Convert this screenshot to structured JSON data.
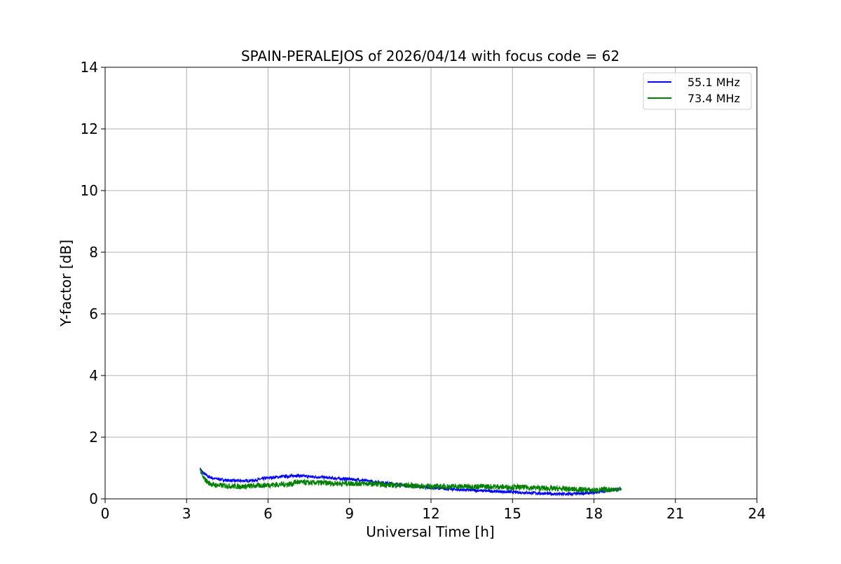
{
  "chart_data": {
    "type": "line",
    "title": "SPAIN-PERALEJOS of 2026/04/14 with focus code = 62",
    "xlabel": "Universal Time [h]",
    "ylabel": "Y-factor [dB]",
    "xlim": [
      0,
      24
    ],
    "ylim": [
      0,
      14
    ],
    "xticks": [
      0,
      3,
      6,
      9,
      12,
      15,
      18,
      21,
      24
    ],
    "yticks": [
      0,
      2,
      4,
      6,
      8,
      10,
      12,
      14
    ],
    "xtick_labels": [
      "0",
      "3",
      "6",
      "9",
      "12",
      "15",
      "18",
      "21",
      "24"
    ],
    "ytick_labels": [
      "0",
      "2",
      "4",
      "6",
      "8",
      "10",
      "12",
      "14"
    ],
    "grid": true,
    "legend_position": "top-right",
    "series": [
      {
        "name": "55.1 MHz",
        "color": "#0000ff",
        "x": [
          3.5,
          3.6,
          3.8,
          4.0,
          4.5,
          5.0,
          5.5,
          6.0,
          6.5,
          6.9,
          7.0,
          7.5,
          8.0,
          8.5,
          9.0,
          9.5,
          10.0,
          10.5,
          11.0,
          11.5,
          12.0,
          12.5,
          13.0,
          13.5,
          14.0,
          14.5,
          15.0,
          15.5,
          16.0,
          16.5,
          17.0,
          17.5,
          18.0,
          18.5,
          19.0
        ],
        "values": [
          0.98,
          0.85,
          0.72,
          0.66,
          0.6,
          0.58,
          0.6,
          0.68,
          0.72,
          0.74,
          0.76,
          0.72,
          0.7,
          0.66,
          0.64,
          0.6,
          0.55,
          0.5,
          0.44,
          0.4,
          0.36,
          0.33,
          0.3,
          0.28,
          0.26,
          0.24,
          0.22,
          0.2,
          0.18,
          0.16,
          0.15,
          0.17,
          0.2,
          0.26,
          0.32
        ],
        "noise": 0.05
      },
      {
        "name": "73.4 MHz",
        "color": "#008000",
        "x": [
          3.5,
          3.6,
          3.8,
          4.0,
          4.5,
          5.0,
          5.5,
          6.0,
          6.5,
          6.9,
          7.0,
          7.5,
          8.0,
          8.5,
          9.0,
          9.5,
          10.0,
          10.5,
          11.0,
          11.5,
          12.0,
          12.5,
          13.0,
          13.5,
          14.0,
          14.5,
          15.0,
          15.5,
          16.0,
          16.5,
          17.0,
          17.5,
          18.0,
          18.5,
          19.0
        ],
        "values": [
          0.95,
          0.7,
          0.52,
          0.45,
          0.42,
          0.4,
          0.42,
          0.45,
          0.47,
          0.48,
          0.55,
          0.52,
          0.52,
          0.5,
          0.5,
          0.5,
          0.48,
          0.45,
          0.44,
          0.42,
          0.4,
          0.4,
          0.4,
          0.4,
          0.4,
          0.39,
          0.38,
          0.37,
          0.35,
          0.33,
          0.32,
          0.3,
          0.28,
          0.3,
          0.32
        ],
        "noise": 0.09
      }
    ]
  }
}
